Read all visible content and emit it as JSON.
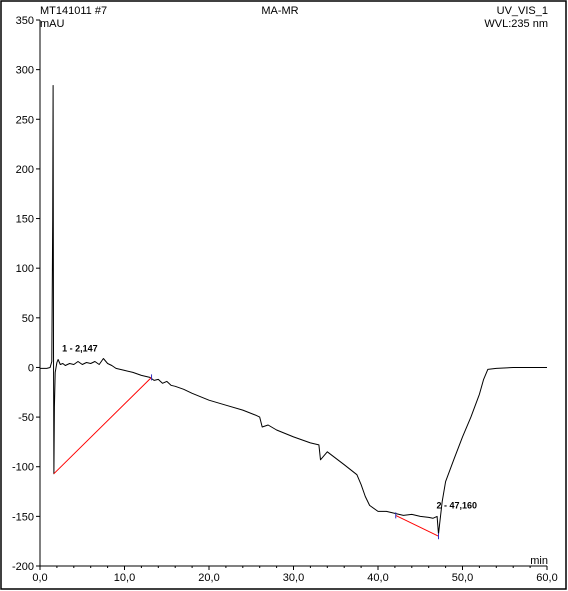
{
  "header": {
    "sample_id": "MT141011 #7",
    "method": "MA-MR",
    "channel": "UV_VIS_1",
    "wavelength": "WVL:235 nm"
  },
  "chart_data": {
    "type": "line",
    "ylabel": "mAU",
    "xlabel": "min",
    "xlim": [
      0,
      60
    ],
    "ylim": [
      -200,
      350
    ],
    "xticks": [
      "0,0",
      "10,0",
      "20,0",
      "30,0",
      "40,0",
      "50,0",
      "60,0"
    ],
    "yticks": [
      "-200",
      "-150",
      "-100",
      "-50",
      "0",
      "50",
      "100",
      "150",
      "200",
      "250",
      "300",
      "350"
    ],
    "grid": false,
    "series": [
      {
        "color": "#000000",
        "x": [
          0.0,
          0.8,
          1.2,
          1.4,
          1.5,
          1.55,
          1.6,
          1.65,
          1.7,
          1.8,
          2.0,
          2.147,
          2.4,
          2.7,
          3.0,
          3.5,
          4.0,
          4.5,
          5.0,
          5.5,
          6.0,
          6.5,
          7.0,
          7.5,
          8.0,
          8.5,
          9.0,
          10.0,
          11.0,
          12.0,
          13.0,
          13.5,
          14.0,
          14.5,
          15.0,
          15.5,
          16.0,
          17.0,
          18.0,
          20.0,
          22.0,
          24.0,
          25.5,
          26.0,
          26.3,
          27.0,
          28.0,
          30.0,
          32.0,
          33.0,
          33.2,
          34.0,
          36.0,
          37.5,
          38.0,
          38.5,
          39.0,
          40.0,
          41.0,
          42.0,
          43.0,
          44.0,
          45.0,
          46.0,
          46.5,
          47.0,
          47.16,
          47.3,
          47.6,
          48.0,
          49.0,
          50.0,
          51.0,
          52.0,
          52.5,
          53.0,
          54.0,
          56.0,
          58.0,
          60.0
        ],
        "y": [
          -1,
          -1,
          0,
          6,
          150,
          284,
          20,
          -107,
          -40,
          -5,
          5,
          8,
          3,
          4,
          2,
          4,
          3,
          6,
          3,
          5,
          4,
          6,
          3,
          9,
          4,
          2,
          -1,
          -3,
          -5,
          -8,
          -10,
          -13,
          -12,
          -16,
          -14,
          -18,
          -19,
          -22,
          -26,
          -33,
          -38,
          -43,
          -48,
          -50,
          -60,
          -58,
          -63,
          -70,
          -76,
          -78,
          -93,
          -85,
          -98,
          -108,
          -118,
          -130,
          -139,
          -145,
          -145,
          -147,
          -149,
          -148,
          -150,
          -151,
          -152,
          -150,
          -168,
          -157,
          -135,
          -115,
          -92,
          -70,
          -50,
          -27,
          -12,
          -2,
          -1,
          0,
          0,
          0
        ]
      },
      {
        "color": "#ff0000",
        "x": [
          1.65,
          13.2
        ],
        "y": [
          -107,
          -10
        ]
      },
      {
        "color": "#ff0000",
        "x": [
          42.1,
          47.16
        ],
        "y": [
          -149,
          -170
        ]
      }
    ],
    "peaks": [
      {
        "label": "1 - 2,147",
        "x": 2.147,
        "y": 8
      },
      {
        "label": "2 - 47,160",
        "x": 47.16,
        "y": -150
      }
    ]
  }
}
